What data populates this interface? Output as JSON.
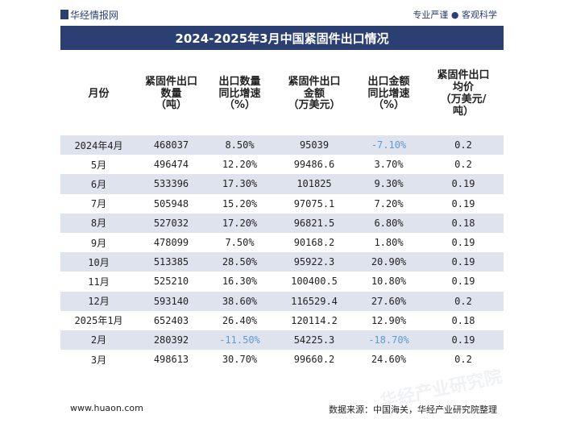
{
  "header": {
    "brand": "华经情报网",
    "tagline": "专业严谨 ● 客观科学"
  },
  "title": "2024-2025年3月中国紧固件出口情况",
  "table": {
    "columns": [
      "月份",
      "紧固件出口\n数量\n（吨）",
      "出口数量\n同比增速\n（%）",
      "紧固件出口\n金额\n（万美元）",
      "出口金额\n同比增速\n（%）",
      "紧固件出口\n均价\n（万美元/\n吨）"
    ],
    "rows": [
      [
        "2024年4月",
        "468037",
        "8.50%",
        "95039",
        "-7.10%",
        "0.2"
      ],
      [
        "5月",
        "496474",
        "12.20%",
        "99486.6",
        "3.70%",
        "0.2"
      ],
      [
        "6月",
        "533396",
        "17.30%",
        "101825",
        "9.30%",
        "0.19"
      ],
      [
        "7月",
        "505948",
        "15.20%",
        "97075.1",
        "7.20%",
        "0.19"
      ],
      [
        "8月",
        "527032",
        "17.20%",
        "96821.5",
        "6.80%",
        "0.18"
      ],
      [
        "9月",
        "478099",
        "7.50%",
        "90168.2",
        "1.80%",
        "0.19"
      ],
      [
        "10月",
        "513385",
        "28.50%",
        "95922.3",
        "20.90%",
        "0.19"
      ],
      [
        "11月",
        "525210",
        "16.30%",
        "100400.5",
        "10.80%",
        "0.19"
      ],
      [
        "12月",
        "593140",
        "38.60%",
        "116529.4",
        "27.60%",
        "0.2"
      ],
      [
        "2025年1月",
        "652403",
        "26.40%",
        "120114.2",
        "12.90%",
        "0.18"
      ],
      [
        "2月",
        "280392",
        "-11.50%",
        "54225.3",
        "-18.70%",
        "0.19"
      ],
      [
        "3月",
        "498613",
        "30.70%",
        "99660.2",
        "24.60%",
        "0.2"
      ]
    ]
  },
  "footer": {
    "url": "www.huaon.com",
    "source": "数据来源：中国海关，华经产业研究院整理"
  },
  "watermark": "华经产业研究院",
  "colors": {
    "header_bg": "#2b3f73",
    "stripe": "#dfe3ee",
    "negative": "#5b9bd5"
  }
}
